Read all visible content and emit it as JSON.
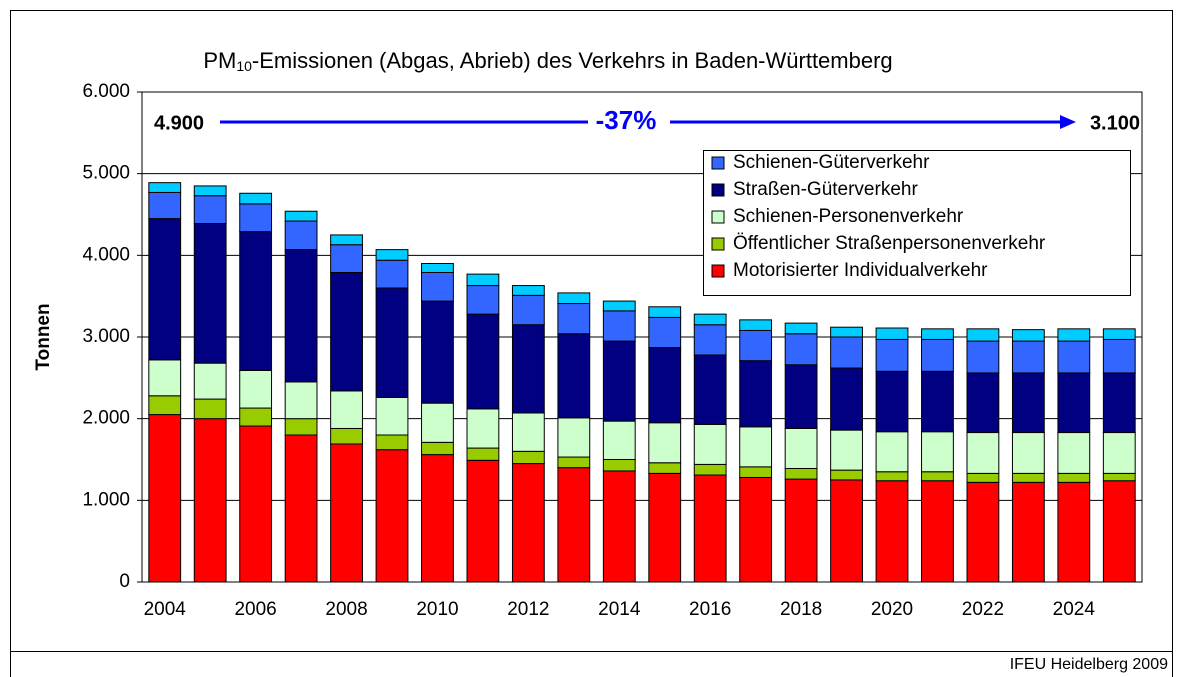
{
  "chart_data": {
    "type": "bar",
    "stacked": true,
    "title": [
      "PM",
      "10",
      "-Emissionen (Abgas, Abrieb) des Verkehrs in Baden-Württemberg"
    ],
    "y_label": "Tonnen",
    "categories": [
      "2004",
      null,
      "2006",
      null,
      "2008",
      null,
      "2010",
      null,
      "2012",
      null,
      "2014",
      null,
      "2016",
      null,
      "2018",
      null,
      "2020",
      null,
      "2022",
      null,
      "2024",
      null
    ],
    "series": [
      {
        "name": "Motorisierter Individualverkehr",
        "color": "#ff0000",
        "values": [
          2050,
          2000,
          1910,
          1800,
          1690,
          1620,
          1560,
          1490,
          1450,
          1400,
          1360,
          1330,
          1310,
          1280,
          1260,
          1250,
          1240,
          1240,
          1220,
          1220,
          1220,
          1240
        ]
      },
      {
        "name": "Öffentlicher Straßenpersonenverkehr",
        "color": "#99cc00",
        "values": [
          230,
          240,
          220,
          200,
          190,
          180,
          150,
          150,
          150,
          130,
          140,
          130,
          130,
          130,
          130,
          120,
          110,
          110,
          110,
          110,
          110,
          90
        ]
      },
      {
        "name": "Schienen-Personenverkehr",
        "color": "#ccffcc",
        "values": [
          440,
          440,
          460,
          450,
          460,
          460,
          480,
          480,
          470,
          480,
          470,
          490,
          490,
          490,
          490,
          490,
          490,
          490,
          500,
          500,
          500,
          500
        ]
      },
      {
        "name": "Straßen-Güterverkehr",
        "color": "#000080",
        "values": [
          1730,
          1710,
          1700,
          1620,
          1450,
          1340,
          1250,
          1160,
          1080,
          1030,
          980,
          920,
          850,
          810,
          780,
          760,
          740,
          740,
          730,
          730,
          730,
          730
        ]
      },
      {
        "name": "Schienen-Güterverkehr",
        "color": "#3366ff",
        "values": [
          320,
          340,
          340,
          350,
          340,
          340,
          350,
          350,
          360,
          370,
          370,
          370,
          370,
          370,
          380,
          380,
          390,
          390,
          390,
          390,
          390,
          410
        ]
      },
      {
        "name": null,
        "color": "#00ccff",
        "values": [
          120,
          120,
          130,
          120,
          120,
          130,
          110,
          140,
          120,
          130,
          120,
          130,
          130,
          130,
          130,
          120,
          140,
          130,
          150,
          140,
          150,
          130
        ]
      }
    ],
    "ylim": [
      0,
      6000
    ],
    "yticks": [
      0,
      {
        "value": 1000,
        "label": "1.000"
      },
      {
        "value": 2000,
        "label": "2.000"
      },
      {
        "value": 3000,
        "label": "3.000"
      },
      {
        "value": 4000,
        "label": "4.000"
      },
      {
        "value": 5000,
        "label": "5.000"
      },
      {
        "value": 6000,
        "label": "6.000"
      }
    ],
    "grid": true,
    "legend": "upper right",
    "annotations": {
      "start": "4.900",
      "change": "-37%",
      "end": "3.100",
      "arrow_color": "#0000ff"
    },
    "source": "IFEU Heidelberg 2009"
  }
}
